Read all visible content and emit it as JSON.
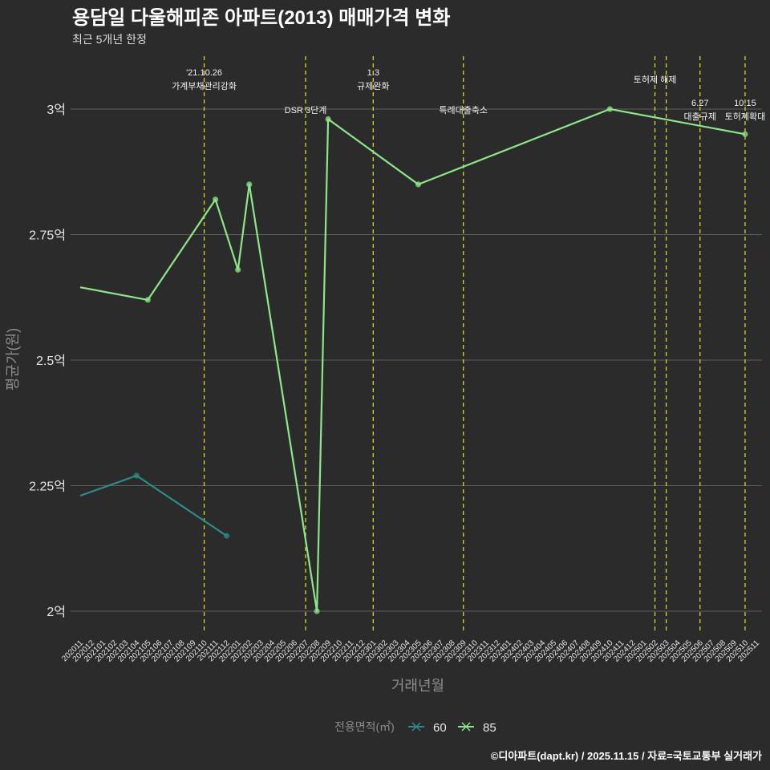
{
  "title": "용담일 다울해피존 아파트(2013) 매매가격 변화",
  "subtitle": "최근 5개년 한정",
  "footer": "©디아파트(dapt.kr) / 2025.11.15 / 자료=국토교통부 실거래가",
  "colors": {
    "background": "#2b2b2c",
    "grid": "#5e5e5e",
    "vline": "#d6d62a",
    "series_60": "#2e8a8a",
    "series_85": "#8ee68a",
    "title": "#ffffff",
    "subtitle": "#dddddd",
    "axis_title": "#8c8c8c",
    "tick": "#e6e6e6",
    "footer": "#ffffff"
  },
  "chart_data": {
    "type": "line",
    "title": "용담일 다울해피존 아파트(2013) 매매가격 변화",
    "subtitle": "최근 5개년 한정",
    "xlabel": "거래년월",
    "ylabel": "평균가(원)",
    "categories": [
      "202011",
      "202012",
      "202101",
      "202102",
      "202103",
      "202104",
      "202105",
      "202106",
      "202107",
      "202108",
      "202109",
      "202110",
      "202111",
      "202112",
      "202201",
      "202202",
      "202203",
      "202204",
      "202205",
      "202206",
      "202207",
      "202208",
      "202209",
      "202210",
      "202211",
      "202212",
      "202301",
      "202302",
      "202303",
      "202304",
      "202305",
      "202306",
      "202307",
      "202308",
      "202309",
      "202310",
      "202311",
      "202312",
      "202401",
      "202402",
      "202403",
      "202404",
      "202405",
      "202406",
      "202407",
      "202408",
      "202409",
      "202410",
      "202411",
      "202412",
      "202501",
      "202502",
      "202503",
      "202504",
      "202505",
      "202506",
      "202507",
      "202508",
      "202509",
      "202510",
      "202511"
    ],
    "ylim": [
      1.95,
      3.1
    ],
    "yticks": [
      2.0,
      2.25,
      2.5,
      2.75,
      3.0
    ],
    "ytick_labels": [
      "2억",
      "2.25억",
      "2.5억",
      "2.75억",
      "3억"
    ],
    "grid": true,
    "legend": {
      "title": "전용면적(㎡)",
      "position": "bottom",
      "entries": [
        "60",
        "85"
      ]
    },
    "series": [
      {
        "name": "60",
        "color_key": "series_60",
        "points": [
          {
            "x": "202011",
            "y": 2.23,
            "marker": false
          },
          {
            "x": "202104",
            "y": 2.27,
            "marker": true
          },
          {
            "x": "202112",
            "y": 2.15,
            "marker": true
          }
        ]
      },
      {
        "name": "85",
        "color_key": "series_85",
        "points": [
          {
            "x": "202011",
            "y": 2.645,
            "marker": false
          },
          {
            "x": "202105",
            "y": 2.62,
            "marker": true
          },
          {
            "x": "202111",
            "y": 2.82,
            "marker": true
          },
          {
            "x": "202201",
            "y": 2.68,
            "marker": true
          },
          {
            "x": "202202",
            "y": 2.85,
            "marker": true
          },
          {
            "x": "202208",
            "y": 2.0,
            "marker": true
          },
          {
            "x": "202209",
            "y": 2.98,
            "marker": true
          },
          {
            "x": "202305",
            "y": 2.85,
            "marker": true
          },
          {
            "x": "202410",
            "y": 3.0,
            "marker": true
          },
          {
            "x": "202510",
            "y": 2.95,
            "marker": true
          }
        ]
      }
    ],
    "annotations": [
      {
        "x": "202110",
        "lines": [
          "'21.10.26",
          "가계부채관리강화"
        ],
        "row": "top"
      },
      {
        "x": "202207",
        "lines": [
          "DSR 3단계"
        ],
        "row": "low"
      },
      {
        "x": "202301",
        "lines": [
          "1.3",
          "규제완화"
        ],
        "row": "top"
      },
      {
        "x": "202309",
        "lines": [
          "특례대출축소"
        ],
        "row": "low"
      },
      {
        "x": "202502",
        "lines": [
          "토허제 해제"
        ],
        "row": "mid"
      },
      {
        "x": "202503",
        "lines": [],
        "row": "none"
      },
      {
        "x": "202506",
        "lines": [
          "6.27",
          "대출규제"
        ],
        "row": "lower"
      },
      {
        "x": "202510",
        "lines": [
          "10.15",
          "토허제확대"
        ],
        "row": "lower"
      }
    ]
  }
}
